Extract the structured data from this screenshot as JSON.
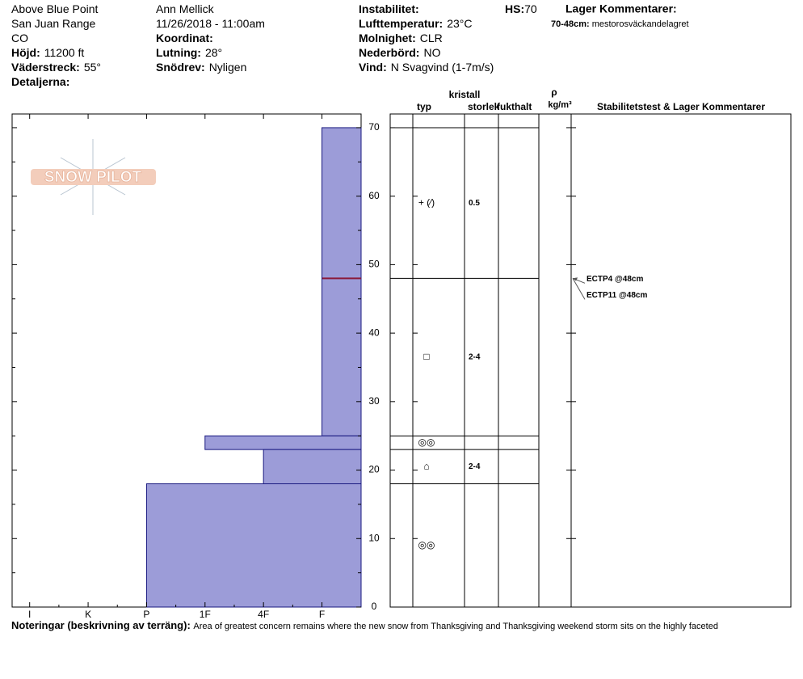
{
  "header": {
    "col1": [
      {
        "value": "Above Blue Point"
      },
      {
        "value": "San Juan Range"
      },
      {
        "value": "CO"
      },
      {
        "label": "Höjd:",
        "value": "11200 ft"
      },
      {
        "label": "Väderstreck:",
        "value": "55°"
      },
      {
        "label": "Detaljerna:"
      }
    ],
    "col2": [
      {
        "value": "Ann Mellick"
      },
      {
        "value": "11/26/2018 - 11:00am"
      },
      {
        "label": "Koordinat:"
      },
      {
        "label": "Lutning:",
        "value": "28°"
      },
      {
        "label": "Snödrev:",
        "value": "Nyligen"
      }
    ],
    "col3": [
      {
        "label": "Instabilitet:"
      },
      {
        "label": "Lufttemperatur:",
        "value": "23°C"
      },
      {
        "label": "Molnighet:",
        "value": "CLR"
      },
      {
        "label": "Nederbörd:",
        "value": "NO"
      },
      {
        "label": "Vind:",
        "value": "N Svagvind (1-7m/s)"
      }
    ],
    "hs": {
      "label": "HS:",
      "value": "70"
    },
    "comments_title": "Lager Kommentarer:",
    "comment": {
      "label": "70-48cm:",
      "value": "mestorosväckandelagret"
    }
  },
  "logo": "SNOW PILOT",
  "chart_data": {
    "type": "snowprofile",
    "xlim": [
      6.3,
      0.33
    ],
    "xticks": [
      {
        "value": 6,
        "label": "I"
      },
      {
        "value": 5,
        "label": "K"
      },
      {
        "value": 4,
        "label": "P"
      },
      {
        "value": 3,
        "label": "1F"
      },
      {
        "value": 2,
        "label": "4F"
      },
      {
        "value": 1,
        "label": "F"
      }
    ],
    "ylim": [
      0,
      72
    ],
    "yticks": [
      0,
      10,
      20,
      30,
      40,
      50,
      60,
      70
    ],
    "color": "#9c9cd8",
    "hardness_layers": {
      "top": [
        70,
        25,
        23,
        18
      ],
      "bottom": [
        25,
        23,
        18,
        0
      ],
      "values": [
        1,
        3,
        2,
        4
      ]
    },
    "columns": {
      "typ": "typ",
      "kristall": "kristall",
      "storlek": "storlek",
      "fukthalt": "fukthalt",
      "rho": "ρ",
      "density_unit": "kg/m³",
      "comments": "Stabilitetstest & Lager Kommentarer"
    },
    "grain_layers": {
      "top": [
        70,
        48,
        25,
        23,
        18
      ],
      "bottom": [
        48,
        25,
        23,
        18,
        0
      ],
      "types": [
        "+ (⁄)",
        "□",
        "◎◎",
        "⌂",
        "◎◎"
      ],
      "sizes": [
        "0.5",
        "2-4",
        null,
        "2-4",
        null
      ]
    },
    "tests": [
      {
        "label": "ECTP4 @48cm",
        "depth": 48
      },
      {
        "label": "ECTP11 @48cm",
        "depth": 48
      }
    ],
    "test_color": "#8b1a3a"
  },
  "notes": {
    "label": "Noteringar (beskrivning av terräng):",
    "value": "Area of greatest concern remains where the new snow from Thanksgiving and Thanksgiving weekend storm sits on the highly faceted"
  }
}
